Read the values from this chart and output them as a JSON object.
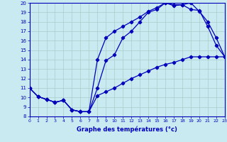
{
  "title": "Graphe des températures (°c)",
  "bg_color": "#c8eaf0",
  "line_color": "#0000bb",
  "grid_color": "#aacccc",
  "xlim": [
    0,
    23
  ],
  "ylim": [
    8,
    20
  ],
  "xticks": [
    0,
    1,
    2,
    3,
    4,
    5,
    6,
    7,
    8,
    9,
    10,
    11,
    12,
    13,
    14,
    15,
    16,
    17,
    18,
    19,
    20,
    21,
    22,
    23
  ],
  "yticks": [
    8,
    9,
    10,
    11,
    12,
    13,
    14,
    15,
    16,
    17,
    18,
    19,
    20
  ],
  "curve1_x": [
    0,
    1,
    2,
    3,
    4,
    5,
    6,
    7,
    8,
    9,
    10,
    11,
    12,
    13,
    14,
    15,
    16,
    17,
    18,
    19,
    20,
    21,
    22,
    23
  ],
  "curve1_y": [
    11,
    10.1,
    9.8,
    9.5,
    9.7,
    8.7,
    8.5,
    8.5,
    14.0,
    16.3,
    17.0,
    17.5,
    18.0,
    18.5,
    19.1,
    19.5,
    20.0,
    19.8,
    19.8,
    20.0,
    19.1,
    18.0,
    16.3,
    14.3
  ],
  "curve2_x": [
    0,
    1,
    2,
    3,
    4,
    5,
    6,
    7,
    8,
    9,
    10,
    11,
    12,
    13,
    14,
    15,
    16,
    17,
    18,
    19,
    20,
    21,
    22,
    23
  ],
  "curve2_y": [
    11,
    10.1,
    9.8,
    9.5,
    9.7,
    8.7,
    8.5,
    8.5,
    11.0,
    13.9,
    14.5,
    16.3,
    17.0,
    18.0,
    19.0,
    19.3,
    20.0,
    19.7,
    19.8,
    19.3,
    19.2,
    17.5,
    15.5,
    14.3
  ],
  "curve3_x": [
    0,
    1,
    2,
    3,
    4,
    5,
    6,
    7,
    8,
    9,
    10,
    11,
    12,
    13,
    14,
    15,
    16,
    17,
    18,
    19,
    20,
    21,
    22,
    23
  ],
  "curve3_y": [
    11,
    10.1,
    9.8,
    9.5,
    9.7,
    8.7,
    8.5,
    8.5,
    10.2,
    10.6,
    11.0,
    11.5,
    12.0,
    12.4,
    12.8,
    13.2,
    13.5,
    13.7,
    14.0,
    14.3,
    14.3,
    14.3,
    14.3,
    14.3
  ]
}
